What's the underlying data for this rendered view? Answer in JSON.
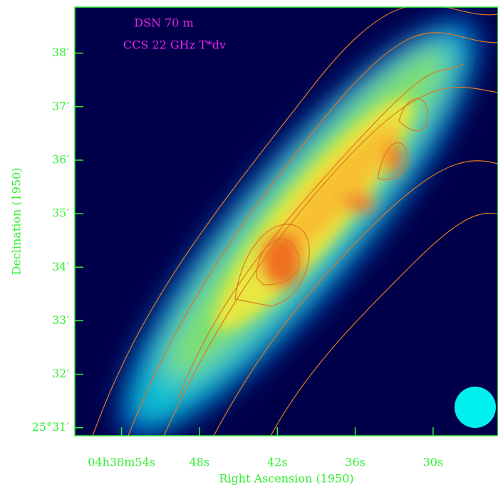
{
  "chart_data": {
    "type": "image-map",
    "annotations": [
      "DSN 70 m",
      "CCS 22 GHz T*dv"
    ],
    "xlabel": "Right Ascension (1950)",
    "ylabel": "Declination (1950)",
    "xlim": [
      57.6,
      25.0
    ],
    "xticks": [
      {
        "value": 54,
        "label": "04h38m54s"
      },
      {
        "value": 48,
        "label": "48s"
      },
      {
        "value": 42,
        "label": "42s"
      },
      {
        "value": 36,
        "label": "36s"
      },
      {
        "value": 30,
        "label": "30s"
      }
    ],
    "ylim": [
      30.85,
      38.86
    ],
    "yticks": [
      {
        "value": 31,
        "label": "25°31′"
      },
      {
        "value": 32,
        "label": "32′"
      },
      {
        "value": 33,
        "label": "33′"
      },
      {
        "value": 34,
        "label": "34′"
      },
      {
        "value": 35,
        "label": "35′"
      },
      {
        "value": 36,
        "label": "36′"
      },
      {
        "value": 37,
        "label": "37′"
      },
      {
        "value": 38,
        "label": "38′"
      }
    ],
    "axis_color": "#33ee33"
  }
}
